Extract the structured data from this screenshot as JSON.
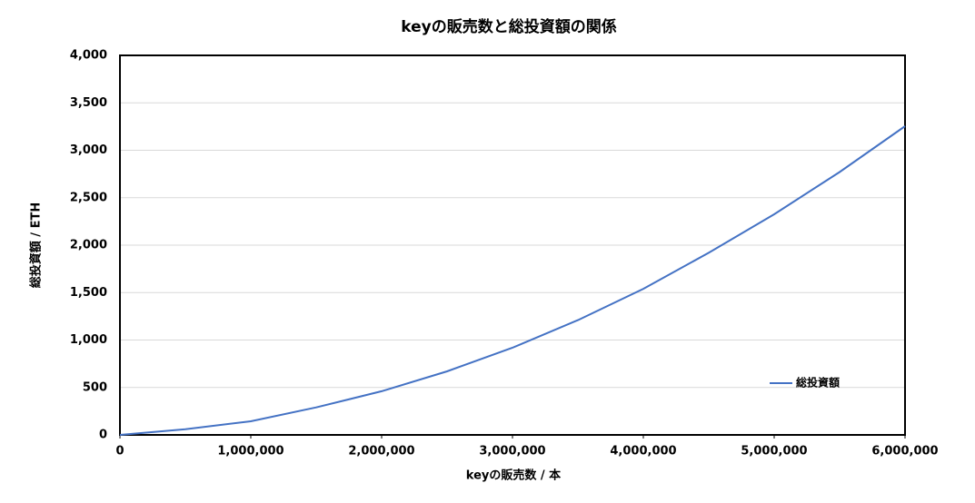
{
  "chart_data": {
    "type": "line",
    "title": "keyの販売数と総投資額の関係",
    "xlabel": "keyの販売数 / 本",
    "ylabel": "総投資額 / ETH",
    "x": [
      0,
      500000,
      1000000,
      1500000,
      2000000,
      2500000,
      3000000,
      3500000,
      4000000,
      4500000,
      5000000,
      5500000,
      6000000
    ],
    "series": [
      {
        "name": "総投資額",
        "color": "#4472c4",
        "values": [
          0,
          60,
          144,
          290,
          460,
          670,
          919,
          1210,
          1540,
          1920,
          2325,
          2770,
          3254
        ]
      }
    ],
    "xlim": [
      0,
      6000000
    ],
    "xticks": [
      0,
      {
        "value": 1000000,
        "label": "1,000,000"
      },
      {
        "value": 2000000,
        "label": "2,000,000"
      },
      {
        "value": 3000000,
        "label": "3,000,000"
      },
      {
        "value": 4000000,
        "label": "4,000,000"
      },
      {
        "value": 5000000,
        "label": "5,000,000"
      },
      {
        "value": 6000000,
        "label": "6,000,000"
      }
    ],
    "ylim": [
      0,
      4000
    ],
    "yticks": [
      0,
      500,
      {
        "value": 1000,
        "label": "1,000"
      },
      {
        "value": 1500,
        "label": "1,500"
      },
      {
        "value": 2000,
        "label": "2,000"
      },
      {
        "value": 2500,
        "label": "2,500"
      },
      {
        "value": 3000,
        "label": "3,000"
      },
      {
        "value": 3500,
        "label": "3,500"
      },
      {
        "value": 4000,
        "label": "4,000"
      }
    ],
    "grid": true,
    "legend": "lower right"
  }
}
